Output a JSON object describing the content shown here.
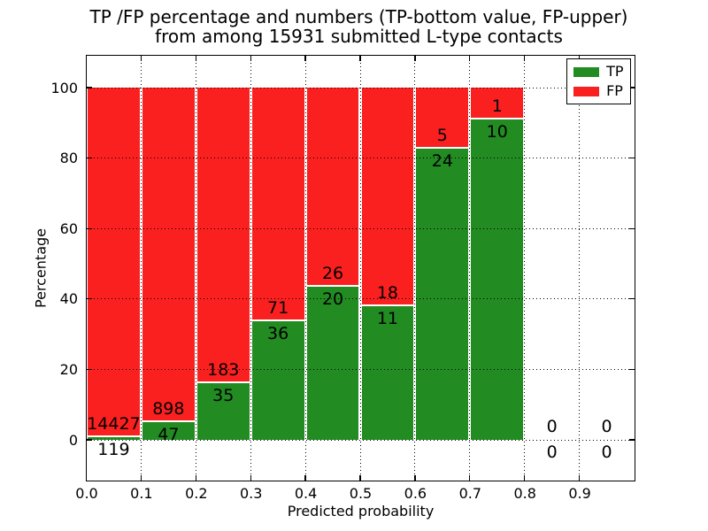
{
  "figure": {
    "background": "#ffffff"
  },
  "chart_data": {
    "type": "bar",
    "stacked": true,
    "normalized_to_percent": true,
    "title": "TP /FP percentage and numbers (TP-bottom value, FP-upper)",
    "subtitle": "from among 15931 submitted L-type contacts",
    "xlabel": "Predicted probability",
    "ylabel": "Percentage",
    "x_ticks": [
      "0.0",
      "0.1",
      "0.2",
      "0.3",
      "0.4",
      "0.5",
      "0.6",
      "0.7",
      "0.8",
      "0.9"
    ],
    "y_ticks": [
      0,
      20,
      40,
      60,
      80,
      100
    ],
    "xlim": [
      0.0,
      1.0
    ],
    "ylim": [
      -11.6,
      109.1
    ],
    "grid": true,
    "grid_style": "dotted",
    "bar_width": 0.1,
    "legend": {
      "position": "upper right",
      "entries": [
        {
          "label": "TP",
          "color": "#228b22"
        },
        {
          "label": "FP",
          "color": "#fb2020"
        }
      ]
    },
    "colors": {
      "tp": "#228b22",
      "fp": "#fb2020"
    },
    "bins": [
      {
        "range": [
          0.0,
          0.1
        ],
        "tp": 119,
        "fp": 14427,
        "tp_pct": 0.82
      },
      {
        "range": [
          0.1,
          0.2
        ],
        "tp": 47,
        "fp": 898,
        "tp_pct": 4.97
      },
      {
        "range": [
          0.2,
          0.3
        ],
        "tp": 35,
        "fp": 183,
        "tp_pct": 16.06
      },
      {
        "range": [
          0.3,
          0.4
        ],
        "tp": 36,
        "fp": 71,
        "tp_pct": 33.64
      },
      {
        "range": [
          0.4,
          0.5
        ],
        "tp": 20,
        "fp": 26,
        "tp_pct": 43.48
      },
      {
        "range": [
          0.5,
          0.6
        ],
        "tp": 11,
        "fp": 18,
        "tp_pct": 37.93
      },
      {
        "range": [
          0.6,
          0.7
        ],
        "tp": 24,
        "fp": 5,
        "tp_pct": 82.76
      },
      {
        "range": [
          0.7,
          0.8
        ],
        "tp": 10,
        "fp": 1,
        "tp_pct": 90.91
      },
      {
        "range": [
          0.8,
          0.9
        ],
        "tp": 0,
        "fp": 0,
        "tp_pct": null
      },
      {
        "range": [
          0.9,
          1.0
        ],
        "tp": 0,
        "fp": 0,
        "tp_pct": null
      }
    ]
  }
}
